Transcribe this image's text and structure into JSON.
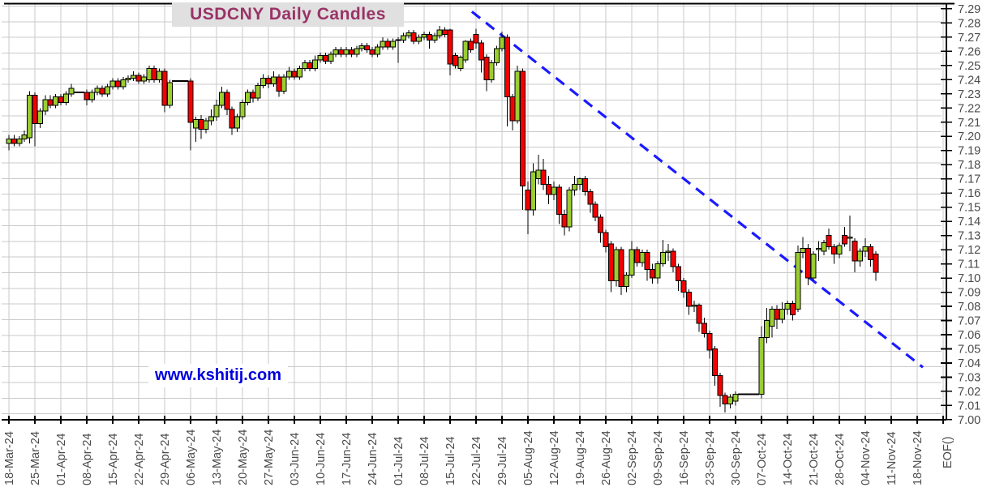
{
  "title": "USDCNY Daily Candles",
  "watermark": "www.kshitij.com",
  "axis_end_label": "EOF()",
  "colors": {
    "up_candle": "#9acd32",
    "down_candle": "#f40000",
    "candle_border": "#000000",
    "wick": "#000000",
    "grid": "#c9c9c9",
    "axis": "#000000",
    "tick_label": "#4a4a4a",
    "trendline": "#1a1aff",
    "title_color": "#993366",
    "title_bg": "#e0e0e0",
    "watermark_color": "#0000dd"
  },
  "chart_data": {
    "type": "candlestick",
    "title": "USDCNY Daily Candles",
    "ylabel": "",
    "xlabel": "",
    "ylim": [
      7.0,
      7.29
    ],
    "y_tick_step": 0.01,
    "grid": true,
    "y_tick_labels": [
      "7.00",
      "7.01",
      "7.02",
      "7.03",
      "7.04",
      "7.05",
      "7.06",
      "7.07",
      "7.08",
      "7.09",
      "7.10",
      "7.11",
      "7.12",
      "7.13",
      "7.14",
      "7.15",
      "7.16",
      "7.17",
      "7.18",
      "7.19",
      "7.20",
      "7.21",
      "7.22",
      "7.23",
      "7.24",
      "7.25",
      "7.26",
      "7.27",
      "7.28",
      "7.29"
    ],
    "x_tick_labels": [
      "18-Mar-24",
      "25-Mar-24",
      "01-Apr-24",
      "08-Apr-24",
      "15-Apr-24",
      "22-Apr-24",
      "29-Apr-24",
      "06-May-24",
      "13-May-24",
      "20-May-24",
      "27-May-24",
      "03-Jun-24",
      "10-Jun-24",
      "17-Jun-24",
      "24-Jun-24",
      "01-Jul-24",
      "08-Jul-24",
      "15-Jul-24",
      "22-Jul-24",
      "29-Jul-24",
      "05-Aug-24",
      "12-Aug-24",
      "19-Aug-24",
      "26-Aug-24",
      "02-Sep-24",
      "09-Sep-24",
      "16-Sep-24",
      "23-Sep-24",
      "30-Sep-24",
      "07-Oct-24",
      "14-Oct-24",
      "21-Oct-24",
      "28-Oct-24",
      "04-Nov-24",
      "11-Nov-24",
      "18-Nov-24"
    ],
    "trendline": {
      "style": "dashed",
      "x1_index": 89.2,
      "price1": 7.288,
      "x2_index": 176.1,
      "price2": 7.037
    },
    "candles": [
      [
        "18-Mar-24",
        7.195,
        7.201,
        7.19,
        7.198
      ],
      [
        "19-Mar-24",
        7.198,
        7.201,
        7.193,
        7.195
      ],
      [
        "20-Mar-24",
        7.195,
        7.2,
        7.193,
        7.198
      ],
      [
        "21-Mar-24",
        7.198,
        7.204,
        7.196,
        7.201
      ],
      [
        "22-Mar-24",
        7.199,
        7.232,
        7.195,
        7.229
      ],
      [
        "25-Mar-24",
        7.229,
        7.231,
        7.193,
        7.209
      ],
      [
        "26-Mar-24",
        7.209,
        7.22,
        7.206,
        7.218
      ],
      [
        "27-Mar-24",
        7.218,
        7.229,
        7.215,
        7.226
      ],
      [
        "28-Mar-24",
        7.226,
        7.229,
        7.22,
        7.222
      ],
      [
        "29-Mar-24",
        7.222,
        7.23,
        7.22,
        7.228
      ],
      [
        "01-Apr-24",
        7.228,
        7.23,
        7.222,
        7.224
      ],
      [
        "02-Apr-24",
        7.224,
        7.232,
        7.222,
        7.23
      ],
      [
        "03-Apr-24",
        7.23,
        7.237,
        7.228,
        7.234
      ],
      [
        "04-Apr-24",
        7.231,
        7.231,
        7.231,
        7.231
      ],
      [
        "05-Apr-24",
        7.231,
        7.231,
        7.231,
        7.231
      ],
      [
        "08-Apr-24",
        7.231,
        7.233,
        7.222,
        7.226
      ],
      [
        "09-Apr-24",
        7.226,
        7.233,
        7.224,
        7.231
      ],
      [
        "10-Apr-24",
        7.231,
        7.236,
        7.229,
        7.234
      ],
      [
        "11-Apr-24",
        7.234,
        7.236,
        7.228,
        7.23
      ],
      [
        "12-Apr-24",
        7.23,
        7.237,
        7.228,
        7.235
      ],
      [
        "15-Apr-24",
        7.235,
        7.241,
        7.233,
        7.239
      ],
      [
        "16-Apr-24",
        7.239,
        7.241,
        7.233,
        7.235
      ],
      [
        "17-Apr-24",
        7.235,
        7.242,
        7.233,
        7.24
      ],
      [
        "18-Apr-24",
        7.24,
        7.243,
        7.238,
        7.241
      ],
      [
        "19-Apr-24",
        7.241,
        7.246,
        7.239,
        7.243
      ],
      [
        "22-Apr-24",
        7.243,
        7.245,
        7.237,
        7.239
      ],
      [
        "23-Apr-24",
        7.239,
        7.244,
        7.237,
        7.242
      ],
      [
        "24-Apr-24",
        7.24,
        7.25,
        7.238,
        7.248
      ],
      [
        "25-Apr-24",
        7.248,
        7.25,
        7.238,
        7.24
      ],
      [
        "26-Apr-24",
        7.24,
        7.248,
        7.238,
        7.246
      ],
      [
        "29-Apr-24",
        7.246,
        7.248,
        7.217,
        7.222
      ],
      [
        "30-Apr-24",
        7.222,
        7.24,
        7.22,
        7.238
      ],
      [
        "01-May-24",
        7.239,
        7.239,
        7.239,
        7.239
      ],
      [
        "02-May-24",
        7.239,
        7.239,
        7.239,
        7.239
      ],
      [
        "03-May-24",
        7.239,
        7.239,
        7.239,
        7.239
      ],
      [
        "06-May-24",
        7.239,
        7.241,
        7.19,
        7.21
      ],
      [
        "07-May-24",
        7.206,
        7.214,
        7.196,
        7.212
      ],
      [
        "08-May-24",
        7.212,
        7.215,
        7.198,
        7.205
      ],
      [
        "09-May-24",
        7.205,
        7.213,
        7.202,
        7.211
      ],
      [
        "10-May-24",
        7.211,
        7.219,
        7.208,
        7.214
      ],
      [
        "13-May-24",
        7.214,
        7.226,
        7.211,
        7.222
      ],
      [
        "14-May-24",
        7.222,
        7.235,
        7.22,
        7.231
      ],
      [
        "15-May-24",
        7.231,
        7.233,
        7.215,
        7.219
      ],
      [
        "16-May-24",
        7.219,
        7.221,
        7.201,
        7.206
      ],
      [
        "17-May-24",
        7.206,
        7.216,
        7.203,
        7.214
      ],
      [
        "20-May-24",
        7.214,
        7.226,
        7.212,
        7.224
      ],
      [
        "21-May-24",
        7.224,
        7.233,
        7.222,
        7.231
      ],
      [
        "22-May-24",
        7.231,
        7.233,
        7.224,
        7.227
      ],
      [
        "23-May-24",
        7.227,
        7.238,
        7.225,
        7.236
      ],
      [
        "24-May-24",
        7.236,
        7.244,
        7.234,
        7.241
      ],
      [
        "27-May-24",
        7.241,
        7.243,
        7.234,
        7.237
      ],
      [
        "28-May-24",
        7.237,
        7.246,
        7.235,
        7.242
      ],
      [
        "29-May-24",
        7.242,
        7.244,
        7.228,
        7.232
      ],
      [
        "30-May-24",
        7.232,
        7.244,
        7.23,
        7.242
      ],
      [
        "31-May-24",
        7.242,
        7.249,
        7.24,
        7.246
      ],
      [
        "03-Jun-24",
        7.246,
        7.248,
        7.24,
        7.242
      ],
      [
        "04-Jun-24",
        7.242,
        7.25,
        7.24,
        7.248
      ],
      [
        "05-Jun-24",
        7.248,
        7.254,
        7.246,
        7.252
      ],
      [
        "06-Jun-24",
        7.252,
        7.254,
        7.246,
        7.248
      ],
      [
        "07-Jun-24",
        7.248,
        7.257,
        7.246,
        7.254
      ],
      [
        "10-Jun-24",
        7.254,
        7.259,
        7.252,
        7.257
      ],
      [
        "11-Jun-24",
        7.257,
        7.259,
        7.251,
        7.253
      ],
      [
        "12-Jun-24",
        7.253,
        7.26,
        7.251,
        7.258
      ],
      [
        "13-Jun-24",
        7.258,
        7.263,
        7.256,
        7.261
      ],
      [
        "14-Jun-24",
        7.261,
        7.263,
        7.256,
        7.258
      ],
      [
        "17-Jun-24",
        7.258,
        7.263,
        7.256,
        7.261
      ],
      [
        "18-Jun-24",
        7.261,
        7.263,
        7.256,
        7.258
      ],
      [
        "19-Jun-24",
        7.258,
        7.264,
        7.256,
        7.262
      ],
      [
        "20-Jun-24",
        7.262,
        7.266,
        7.26,
        7.264
      ],
      [
        "21-Jun-24",
        7.264,
        7.266,
        7.259,
        7.261
      ],
      [
        "24-Jun-24",
        7.261,
        7.263,
        7.256,
        7.258
      ],
      [
        "25-Jun-24",
        7.258,
        7.265,
        7.256,
        7.263
      ],
      [
        "26-Jun-24",
        7.263,
        7.27,
        7.261,
        7.267
      ],
      [
        "27-Jun-24",
        7.267,
        7.269,
        7.261,
        7.263
      ],
      [
        "28-Jun-24",
        7.263,
        7.269,
        7.261,
        7.267
      ],
      [
        "01-Jul-24",
        7.268,
        7.27,
        7.252,
        7.268
      ],
      [
        "02-Jul-24",
        7.268,
        7.273,
        7.266,
        7.271
      ],
      [
        "03-Jul-24",
        7.271,
        7.275,
        7.269,
        7.273
      ],
      [
        "04-Jul-24",
        7.273,
        7.275,
        7.265,
        7.267
      ],
      [
        "05-Jul-24",
        7.267,
        7.272,
        7.265,
        7.27
      ],
      [
        "08-Jul-24",
        7.27,
        7.274,
        7.268,
        7.272
      ],
      [
        "09-Jul-24",
        7.272,
        7.274,
        7.262,
        7.268
      ],
      [
        "10-Jul-24",
        7.268,
        7.273,
        7.266,
        7.271
      ],
      [
        "11-Jul-24",
        7.271,
        7.278,
        7.269,
        7.275
      ],
      [
        "12-Jul-24",
        7.275,
        7.277,
        7.27,
        7.272
      ],
      [
        "15-Jul-24",
        7.275,
        7.276,
        7.243,
        7.251
      ],
      [
        "16-Jul-24",
        7.257,
        7.259,
        7.248,
        7.25
      ],
      [
        "17-Jul-24",
        7.248,
        7.257,
        7.246,
        7.256
      ],
      [
        "18-Jul-24",
        7.254,
        7.268,
        7.252,
        7.267
      ],
      [
        "19-Jul-24",
        7.267,
        7.269,
        7.259,
        7.261
      ],
      [
        "22-Jul-24",
        7.272,
        7.276,
        7.262,
        7.266
      ],
      [
        "23-Jul-24",
        7.266,
        7.268,
        7.245,
        7.254
      ],
      [
        "24-Jul-24",
        7.256,
        7.258,
        7.232,
        7.24
      ],
      [
        "25-Jul-24",
        7.24,
        7.254,
        7.238,
        7.252
      ],
      [
        "26-Jul-24",
        7.252,
        7.264,
        7.25,
        7.262
      ],
      [
        "29-Jul-24",
        7.262,
        7.274,
        7.26,
        7.27
      ],
      [
        "30-Jul-24",
        7.27,
        7.272,
        7.207,
        7.228
      ],
      [
        "31-Jul-24",
        7.228,
        7.23,
        7.204,
        7.211
      ],
      [
        "01-Aug-24",
        7.211,
        7.25,
        7.209,
        7.246
      ],
      [
        "02-Aug-24",
        7.246,
        7.248,
        7.148,
        7.165
      ],
      [
        "05-Aug-24",
        7.162,
        7.168,
        7.131,
        7.148
      ],
      [
        "06-Aug-24",
        7.148,
        7.181,
        7.144,
        7.175
      ],
      [
        "07-Aug-24",
        7.17,
        7.187,
        7.166,
        7.176
      ],
      [
        "08-Aug-24",
        7.176,
        7.184,
        7.162,
        7.166
      ],
      [
        "09-Aug-24",
        7.166,
        7.172,
        7.152,
        7.159
      ],
      [
        "12-Aug-24",
        7.159,
        7.168,
        7.155,
        7.164
      ],
      [
        "13-Aug-24",
        7.164,
        7.166,
        7.138,
        7.145
      ],
      [
        "14-Aug-24",
        7.145,
        7.148,
        7.13,
        7.136
      ],
      [
        "15-Aug-24",
        7.136,
        7.164,
        7.133,
        7.162
      ],
      [
        "16-Aug-24",
        7.162,
        7.172,
        7.158,
        7.166
      ],
      [
        "19-Aug-24",
        7.166,
        7.171,
        7.162,
        7.17
      ],
      [
        "20-Aug-24",
        7.17,
        7.172,
        7.158,
        7.161
      ],
      [
        "21-Aug-24",
        7.161,
        7.163,
        7.146,
        7.152
      ],
      [
        "22-Aug-24",
        7.152,
        7.154,
        7.14,
        7.143
      ],
      [
        "23-Aug-24",
        7.143,
        7.145,
        7.125,
        7.132
      ],
      [
        "26-Aug-24",
        7.132,
        7.134,
        7.118,
        7.122
      ],
      [
        "27-Aug-24",
        7.124,
        7.126,
        7.09,
        7.098
      ],
      [
        "28-Aug-24",
        7.098,
        7.122,
        7.094,
        7.12
      ],
      [
        "29-Aug-24",
        7.12,
        7.122,
        7.088,
        7.094
      ],
      [
        "30-Aug-24",
        7.094,
        7.104,
        7.09,
        7.102
      ],
      [
        "02-Sep-24",
        7.102,
        7.126,
        7.1,
        7.12
      ],
      [
        "03-Sep-24",
        7.12,
        7.122,
        7.108,
        7.111
      ],
      [
        "04-Sep-24",
        7.111,
        7.12,
        7.108,
        7.118
      ],
      [
        "05-Sep-24",
        7.118,
        7.12,
        7.098,
        7.106
      ],
      [
        "06-Sep-24",
        7.106,
        7.11,
        7.096,
        7.1
      ],
      [
        "09-Sep-24",
        7.1,
        7.112,
        7.096,
        7.11
      ],
      [
        "10-Sep-24",
        7.11,
        7.127,
        7.108,
        7.118
      ],
      [
        "11-Sep-24",
        7.118,
        7.124,
        7.112,
        7.119
      ],
      [
        "12-Sep-24",
        7.119,
        7.121,
        7.104,
        7.108
      ],
      [
        "13-Sep-24",
        7.108,
        7.11,
        7.091,
        7.098
      ],
      [
        "16-Sep-24",
        7.098,
        7.1,
        7.086,
        7.09
      ],
      [
        "17-Sep-24",
        7.09,
        7.092,
        7.074,
        7.08
      ],
      [
        "18-Sep-24",
        7.08,
        7.084,
        7.076,
        7.081
      ],
      [
        "19-Sep-24",
        7.081,
        7.082,
        7.062,
        7.068
      ],
      [
        "20-Sep-24",
        7.068,
        7.072,
        7.058,
        7.061
      ],
      [
        "23-Sep-24",
        7.061,
        7.063,
        7.043,
        7.049
      ],
      [
        "24-Sep-24",
        7.05,
        7.052,
        7.024,
        7.031
      ],
      [
        "25-Sep-24",
        7.031,
        7.033,
        7.009,
        7.017
      ],
      [
        "26-Sep-24",
        7.017,
        7.019,
        7.005,
        7.011
      ],
      [
        "27-Sep-24",
        7.011,
        7.018,
        7.008,
        7.016
      ],
      [
        "30-Sep-24",
        7.013,
        7.02,
        7.01,
        7.018
      ],
      [
        "01-Oct-24",
        7.018,
        7.018,
        7.018,
        7.018
      ],
      [
        "02-Oct-24",
        7.018,
        7.018,
        7.018,
        7.018
      ],
      [
        "03-Oct-24",
        7.018,
        7.018,
        7.018,
        7.018
      ],
      [
        "04-Oct-24",
        7.018,
        7.018,
        7.018,
        7.018
      ],
      [
        "07-Oct-24",
        7.018,
        7.066,
        7.015,
        7.058
      ],
      [
        "08-Oct-24",
        7.058,
        7.079,
        7.054,
        7.07
      ],
      [
        "09-Oct-24",
        7.066,
        7.08,
        7.058,
        7.078
      ],
      [
        "10-Oct-24",
        7.078,
        7.081,
        7.064,
        7.071
      ],
      [
        "11-Oct-24",
        7.071,
        7.083,
        7.068,
        7.078
      ],
      [
        "14-Oct-24",
        7.078,
        7.084,
        7.074,
        7.082
      ],
      [
        "15-Oct-24",
        7.082,
        7.084,
        7.07,
        7.074
      ],
      [
        "16-Oct-24",
        7.078,
        7.123,
        7.076,
        7.118
      ],
      [
        "17-Oct-24",
        7.118,
        7.129,
        7.114,
        7.121
      ],
      [
        "18-Oct-24",
        7.121,
        7.124,
        7.095,
        7.1
      ],
      [
        "21-Oct-24",
        7.1,
        7.119,
        7.098,
        7.117
      ],
      [
        "22-Oct-24",
        7.12,
        7.126,
        7.112,
        7.121
      ],
      [
        "23-Oct-24",
        7.119,
        7.127,
        7.116,
        7.125
      ],
      [
        "24-Oct-24",
        7.13,
        7.135,
        7.12,
        7.122
      ],
      [
        "25-Oct-24",
        7.122,
        7.124,
        7.11,
        7.117
      ],
      [
        "28-Oct-24",
        7.117,
        7.125,
        7.114,
        7.123
      ],
      [
        "29-Oct-24",
        7.13,
        7.136,
        7.122,
        7.124
      ],
      [
        "30-Oct-24",
        7.128,
        7.144,
        7.119,
        7.129
      ],
      [
        "31-Oct-24",
        7.126,
        7.128,
        7.104,
        7.112
      ],
      [
        "01-Nov-24",
        7.112,
        7.121,
        7.108,
        7.119
      ],
      [
        "04-Nov-24",
        7.119,
        7.128,
        7.115,
        7.122
      ],
      [
        "05-Nov-24",
        7.122,
        7.124,
        7.108,
        7.113
      ],
      [
        "06-Nov-24",
        7.117,
        7.119,
        7.098,
        7.104
      ]
    ]
  }
}
